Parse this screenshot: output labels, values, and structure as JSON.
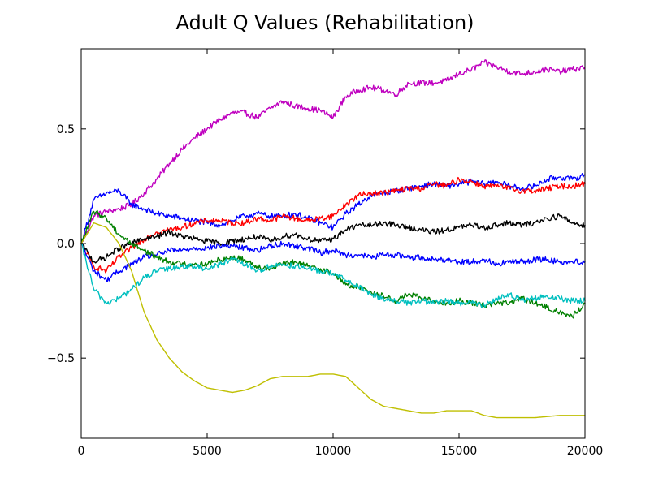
{
  "chart_data": {
    "type": "line",
    "title": "Adult Q Values (Rehabilitation)",
    "xlabel": "",
    "ylabel": "",
    "xlim": [
      0,
      20000
    ],
    "ylim": [
      -0.85,
      0.85
    ],
    "grid": false,
    "xticks": [
      0,
      5000,
      10000,
      15000,
      20000
    ],
    "xtick_labels": [
      "0",
      "5000",
      "10000",
      "15000",
      "20000"
    ],
    "yticks": [
      -0.5,
      0.0,
      0.5
    ],
    "ytick_labels": [
      "−0.5",
      "0.0",
      "0.5"
    ],
    "series": [
      {
        "color": "#bf00bf",
        "x": [
          0,
          500,
          1000,
          1500,
          2000,
          2500,
          3000,
          3500,
          4000,
          4500,
          5000,
          5500,
          6000,
          6500,
          7000,
          7500,
          8000,
          8500,
          9000,
          9500,
          10000,
          10500,
          11000,
          11500,
          12000,
          12500,
          13000,
          13500,
          14000,
          14500,
          15000,
          15500,
          16000,
          16500,
          17000,
          17500,
          18000,
          18500,
          19000,
          19500,
          20000
        ],
        "y": [
          0.0,
          0.12,
          0.14,
          0.15,
          0.17,
          0.22,
          0.28,
          0.35,
          0.41,
          0.46,
          0.5,
          0.54,
          0.57,
          0.57,
          0.55,
          0.59,
          0.62,
          0.6,
          0.59,
          0.58,
          0.55,
          0.64,
          0.67,
          0.68,
          0.67,
          0.65,
          0.7,
          0.7,
          0.7,
          0.71,
          0.74,
          0.76,
          0.79,
          0.77,
          0.75,
          0.74,
          0.75,
          0.76,
          0.75,
          0.76,
          0.77
        ]
      },
      {
        "color": "#0000ff",
        "x": [
          0,
          500,
          1000,
          1500,
          2000,
          2500,
          3000,
          3500,
          4000,
          4500,
          5000,
          5500,
          6000,
          6500,
          7000,
          7500,
          8000,
          8500,
          9000,
          9500,
          10000,
          10500,
          11000,
          11500,
          12000,
          12500,
          13000,
          13500,
          14000,
          14500,
          15000,
          15500,
          16000,
          16500,
          17000,
          17500,
          18000,
          18500,
          19000,
          19500,
          20000
        ],
        "y": [
          0.0,
          0.19,
          0.22,
          0.23,
          0.17,
          0.15,
          0.13,
          0.12,
          0.11,
          0.1,
          0.09,
          0.08,
          0.1,
          0.12,
          0.13,
          0.12,
          0.12,
          0.13,
          0.11,
          0.09,
          0.07,
          0.13,
          0.17,
          0.21,
          0.22,
          0.23,
          0.24,
          0.25,
          0.26,
          0.25,
          0.26,
          0.27,
          0.26,
          0.27,
          0.25,
          0.24,
          0.25,
          0.28,
          0.29,
          0.28,
          0.3
        ]
      },
      {
        "color": "#ff0000",
        "x": [
          0,
          500,
          1000,
          1500,
          2000,
          2500,
          3000,
          3500,
          4000,
          4500,
          5000,
          5500,
          6000,
          6500,
          7000,
          7500,
          8000,
          8500,
          9000,
          9500,
          10000,
          10500,
          11000,
          11500,
          12000,
          12500,
          13000,
          13500,
          14000,
          14500,
          15000,
          15500,
          16000,
          16500,
          17000,
          17500,
          18000,
          18500,
          19000,
          19500,
          20000
        ],
        "y": [
          0.0,
          -0.1,
          -0.12,
          -0.06,
          -0.02,
          0.02,
          0.05,
          0.06,
          0.07,
          0.09,
          0.1,
          0.1,
          0.09,
          0.09,
          0.11,
          0.1,
          0.12,
          0.11,
          0.1,
          0.11,
          0.12,
          0.17,
          0.21,
          0.22,
          0.22,
          0.23,
          0.24,
          0.24,
          0.26,
          0.25,
          0.28,
          0.27,
          0.25,
          0.25,
          0.24,
          0.23,
          0.23,
          0.24,
          0.25,
          0.25,
          0.26
        ]
      },
      {
        "color": "#000000",
        "x": [
          0,
          500,
          1000,
          1500,
          2000,
          2500,
          3000,
          3500,
          4000,
          4500,
          5000,
          5500,
          6000,
          6500,
          7000,
          7500,
          8000,
          8500,
          9000,
          9500,
          10000,
          10500,
          11000,
          11500,
          12000,
          12500,
          13000,
          13500,
          14000,
          14500,
          15000,
          15500,
          16000,
          16500,
          17000,
          17500,
          18000,
          18500,
          19000,
          19500,
          20000
        ],
        "y": [
          0.0,
          -0.08,
          -0.06,
          -0.02,
          0.0,
          0.02,
          0.03,
          0.05,
          0.03,
          0.02,
          0.01,
          0.0,
          0.01,
          0.02,
          0.03,
          0.01,
          0.03,
          0.04,
          0.02,
          0.01,
          0.02,
          0.06,
          0.08,
          0.08,
          0.09,
          0.08,
          0.07,
          0.06,
          0.05,
          0.06,
          0.07,
          0.08,
          0.07,
          0.08,
          0.09,
          0.08,
          0.09,
          0.11,
          0.12,
          0.09,
          0.08
        ]
      },
      {
        "color": "#0000ff",
        "x": [
          0,
          500,
          1000,
          1500,
          2000,
          2500,
          3000,
          3500,
          4000,
          4500,
          5000,
          5500,
          6000,
          6500,
          7000,
          7500,
          8000,
          8500,
          9000,
          9500,
          10000,
          10500,
          11000,
          11500,
          12000,
          12500,
          13000,
          13500,
          14000,
          14500,
          15000,
          15500,
          16000,
          16500,
          17000,
          17500,
          18000,
          18500,
          19000,
          19500,
          20000
        ],
        "y": [
          0.0,
          -0.12,
          -0.16,
          -0.12,
          -0.09,
          -0.06,
          -0.05,
          -0.03,
          -0.03,
          -0.02,
          -0.02,
          -0.01,
          -0.01,
          -0.02,
          -0.03,
          -0.01,
          0.0,
          -0.01,
          -0.02,
          -0.04,
          -0.03,
          -0.05,
          -0.05,
          -0.06,
          -0.05,
          -0.05,
          -0.06,
          -0.06,
          -0.07,
          -0.07,
          -0.08,
          -0.08,
          -0.07,
          -0.09,
          -0.08,
          -0.08,
          -0.07,
          -0.07,
          -0.08,
          -0.08,
          -0.08
        ]
      },
      {
        "color": "#008000",
        "x": [
          0,
          500,
          1000,
          1500,
          2000,
          2500,
          3000,
          3500,
          4000,
          4500,
          5000,
          5500,
          6000,
          6500,
          7000,
          7500,
          8000,
          8500,
          9000,
          9500,
          10000,
          10500,
          11000,
          11500,
          12000,
          12500,
          13000,
          13500,
          14000,
          14500,
          15000,
          15500,
          16000,
          16500,
          17000,
          17500,
          18000,
          18500,
          19000,
          19500,
          20000
        ],
        "y": [
          0.0,
          0.14,
          0.11,
          0.04,
          0.0,
          -0.03,
          -0.06,
          -0.08,
          -0.09,
          -0.09,
          -0.09,
          -0.07,
          -0.06,
          -0.07,
          -0.1,
          -0.11,
          -0.09,
          -0.08,
          -0.1,
          -0.11,
          -0.13,
          -0.18,
          -0.19,
          -0.21,
          -0.23,
          -0.25,
          -0.22,
          -0.24,
          -0.25,
          -0.26,
          -0.25,
          -0.26,
          -0.27,
          -0.26,
          -0.26,
          -0.24,
          -0.26,
          -0.28,
          -0.3,
          -0.32,
          -0.26
        ]
      },
      {
        "color": "#00bfbf",
        "x": [
          0,
          500,
          1000,
          1500,
          2000,
          2500,
          3000,
          3500,
          4000,
          4500,
          5000,
          5500,
          6000,
          6500,
          7000,
          7500,
          8000,
          8500,
          9000,
          9500,
          10000,
          10500,
          11000,
          11500,
          12000,
          12500,
          13000,
          13500,
          14000,
          14500,
          15000,
          15500,
          16000,
          16500,
          17000,
          17500,
          18000,
          18500,
          19000,
          19500,
          20000
        ],
        "y": [
          0.0,
          -0.2,
          -0.26,
          -0.24,
          -0.2,
          -0.15,
          -0.12,
          -0.11,
          -0.1,
          -0.1,
          -0.11,
          -0.09,
          -0.07,
          -0.09,
          -0.12,
          -0.1,
          -0.09,
          -0.1,
          -0.11,
          -0.12,
          -0.13,
          -0.16,
          -0.19,
          -0.22,
          -0.24,
          -0.25,
          -0.26,
          -0.25,
          -0.26,
          -0.25,
          -0.26,
          -0.26,
          -0.27,
          -0.24,
          -0.22,
          -0.25,
          -0.24,
          -0.23,
          -0.24,
          -0.25,
          -0.25
        ]
      },
      {
        "color": "#bfbf00",
        "x": [
          0,
          500,
          1000,
          1500,
          2000,
          2500,
          3000,
          3500,
          4000,
          4500,
          5000,
          5500,
          6000,
          6500,
          7000,
          7500,
          8000,
          8500,
          9000,
          9500,
          10000,
          10500,
          11000,
          11500,
          12000,
          12500,
          13000,
          13500,
          14000,
          14500,
          15000,
          15500,
          16000,
          16500,
          17000,
          17500,
          18000,
          18500,
          19000,
          19500,
          20000
        ],
        "y": [
          0.0,
          0.09,
          0.07,
          0.0,
          -0.12,
          -0.3,
          -0.42,
          -0.5,
          -0.56,
          -0.6,
          -0.63,
          -0.64,
          -0.65,
          -0.64,
          -0.62,
          -0.59,
          -0.58,
          -0.58,
          -0.58,
          -0.57,
          -0.57,
          -0.58,
          -0.63,
          -0.68,
          -0.71,
          -0.72,
          -0.73,
          -0.74,
          -0.74,
          -0.73,
          -0.73,
          -0.73,
          -0.75,
          -0.76,
          -0.76,
          -0.76,
          -0.76,
          -0.755,
          -0.75,
          -0.75,
          -0.75
        ]
      }
    ]
  }
}
